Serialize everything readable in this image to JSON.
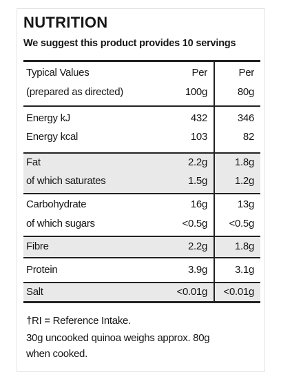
{
  "header": {
    "title": "NUTRITION",
    "subtitle": "We suggest this product provides 10 servings"
  },
  "columns": {
    "label_line1": "Typical Values",
    "label_line2": "(prepared as directed)",
    "col1_line1": "Per",
    "col1_line2": "100g",
    "col2_line1": "Per",
    "col2_line2": "80g"
  },
  "rows": [
    {
      "label": "Energy kJ",
      "per100": "432",
      "per80": "346"
    },
    {
      "label": "Energy kcal",
      "per100": "103",
      "per80": "82"
    },
    {
      "label": "Fat",
      "per100": "2.2g",
      "per80": "1.8g"
    },
    {
      "label": "of which saturates",
      "per100": "1.5g",
      "per80": "1.2g"
    },
    {
      "label": "Carbohydrate",
      "per100": "16g",
      "per80": "13g"
    },
    {
      "label": "of which sugars",
      "per100": "<0.5g",
      "per80": "<0.5g"
    },
    {
      "label": "Fibre",
      "per100": "2.2g",
      "per80": "1.8g"
    },
    {
      "label": "Protein",
      "per100": "3.9g",
      "per80": "3.1g"
    },
    {
      "label": "Salt",
      "per100": "<0.01g",
      "per80": "<0.01g"
    }
  ],
  "footnotes": {
    "line1": "†RI = Reference Intake.",
    "line2": "30g uncooked quinoa weighs approx. 80g",
    "line3": "when cooked."
  }
}
